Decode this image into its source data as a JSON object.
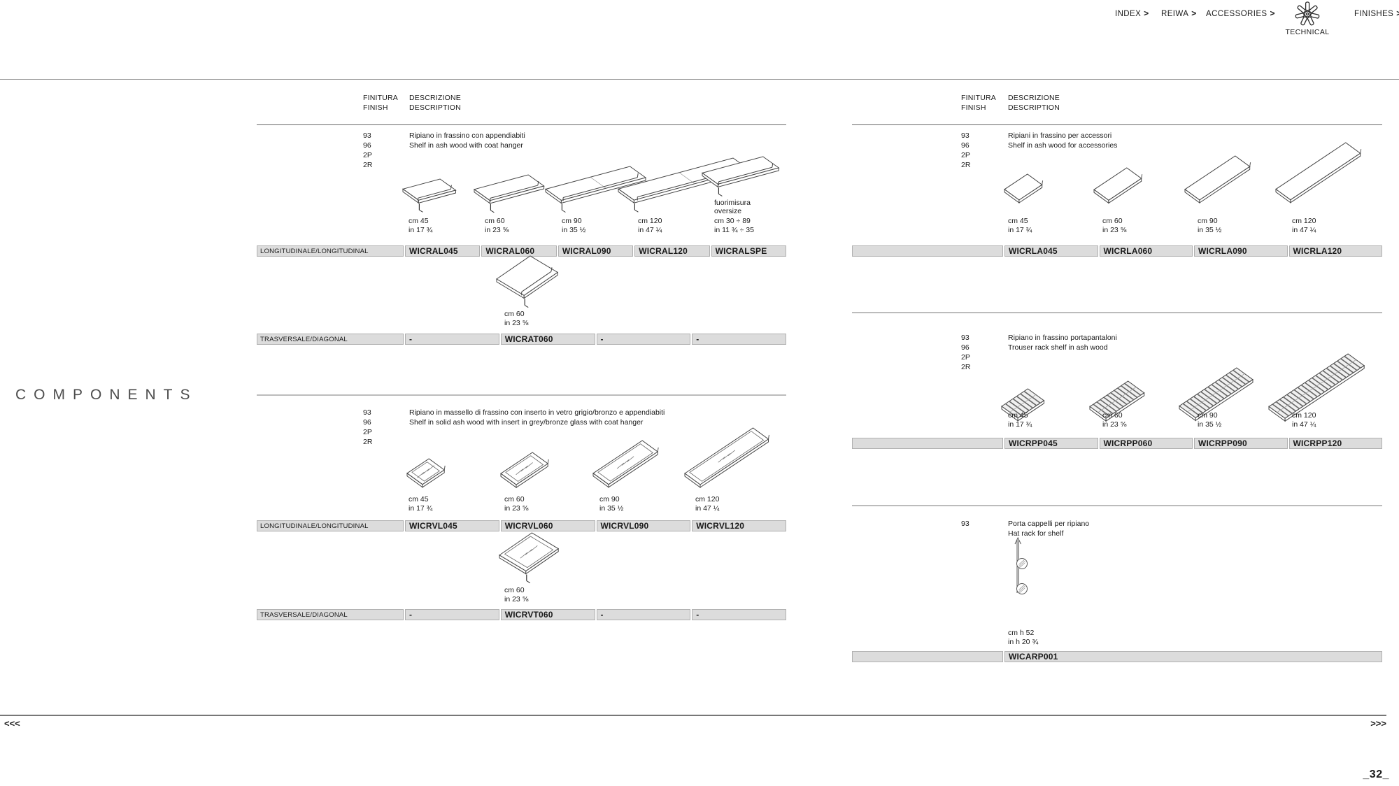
{
  "header": {
    "arrow": ">",
    "nav": [
      {
        "label": "INDEX"
      },
      {
        "label": "REIWA"
      },
      {
        "label": "ACCESSORIES"
      },
      {
        "label": "FINISHES"
      }
    ],
    "logo_caption": "TECHNICAL"
  },
  "components_title": "COMPONENTS",
  "table_header": {
    "finitura": "FINITURA",
    "finish": "FINISH",
    "descrizione": "DESCRIZIONE",
    "description": "DESCRIPTION"
  },
  "left": {
    "s1": {
      "finishes": [
        "93",
        "96",
        "2P",
        "2R"
      ],
      "desc_it": "Ripiano in frassino con appendiabiti",
      "desc_en": "Shelf in ash wood with coat hanger",
      "dims": [
        {
          "cm": "cm 45",
          "in": "in 17 ¾"
        },
        {
          "cm": "cm 60",
          "in": "in 23 ⅝"
        },
        {
          "cm": "cm 90",
          "in": "in 35 ½"
        },
        {
          "cm": "cm 120",
          "in": "in 47 ¼"
        },
        {
          "cm": "cm 30 ÷ 89",
          "in": "in 11 ¾ ÷ 35",
          "note1": "fuorimisura",
          "note2": "oversize"
        }
      ],
      "row_label": "LONGITUDINALE/LONGITUDINAL",
      "codes": [
        "WICRAL045",
        "WICRAL060",
        "WICRAL090",
        "WICRAL120",
        "WICRALSPE"
      ]
    },
    "s2": {
      "dim": {
        "cm": "cm 60",
        "in": "in 23 ⅝"
      },
      "row_label": "TRASVERSALE/DIAGONAL",
      "codes": [
        "-",
        "WICRAT060",
        "-",
        "-"
      ]
    },
    "s3": {
      "finishes": [
        "93",
        "96",
        "2P",
        "2R"
      ],
      "desc_it": "Ripiano in massello di frassino con inserto in vetro grigio/bronzo e appendiabiti",
      "desc_en": "Shelf in solid ash wood with insert in grey/bronze glass with coat hanger",
      "dims": [
        {
          "cm": "cm 45",
          "in": "in 17 ¾"
        },
        {
          "cm": "cm 60",
          "in": "in 23 ⅝"
        },
        {
          "cm": "cm 90",
          "in": "in 35 ½"
        },
        {
          "cm": "cm 120",
          "in": "in 47 ¼"
        }
      ],
      "row_label": "LONGITUDINALE/LONGITUDINAL",
      "codes": [
        "WICRVL045",
        "WICRVL060",
        "WICRVL090",
        "WICRVL120"
      ]
    },
    "s4": {
      "dim": {
        "cm": "cm 60",
        "in": "in 23 ⅝"
      },
      "row_label": "TRASVERSALE/DIAGONAL",
      "codes": [
        "-",
        "WICRVT060",
        "-",
        "-"
      ]
    }
  },
  "right": {
    "r1": {
      "finishes": [
        "93",
        "96",
        "2P",
        "2R"
      ],
      "desc_it": "Ripiani in frassino per accessori",
      "desc_en": "Shelf in ash wood for accessories",
      "dims": [
        {
          "cm": "cm 45",
          "in": "in 17 ¾"
        },
        {
          "cm": "cm 60",
          "in": "in 23 ⅝"
        },
        {
          "cm": "cm 90",
          "in": "in 35 ½"
        },
        {
          "cm": "cm 120",
          "in": "in 47 ¼"
        }
      ],
      "row_label": "",
      "codes": [
        "WICRLA045",
        "WICRLA060",
        "WICRLA090",
        "WICRLA120"
      ]
    },
    "r2": {
      "finishes": [
        "93",
        "96",
        "2P",
        "2R"
      ],
      "desc_it": "Ripiano in frassino portapantaloni",
      "desc_en": "Trouser rack shelf in ash wood",
      "dims": [
        {
          "cm": "cm 45",
          "in": "in 17 ¾"
        },
        {
          "cm": "cm 60",
          "in": "in 23 ⅝"
        },
        {
          "cm": "cm 90",
          "in": "in 35 ½"
        },
        {
          "cm": "cm 120",
          "in": "in 47 ¼"
        }
      ],
      "row_label": "",
      "codes": [
        "WICRPP045",
        "WICRPP060",
        "WICRPP090",
        "WICRPP120"
      ]
    },
    "r3": {
      "finishes": [
        "93"
      ],
      "desc_it": "Porta cappelli per ripiano",
      "desc_en": "Hat rack for shelf",
      "dim": {
        "cm": "cm h 52",
        "in": "in h 20 ¾"
      },
      "row_label": "",
      "codes": [
        "WICARP001"
      ]
    }
  },
  "footer": {
    "prev": "<<<",
    "next": ">>>",
    "page": "_32_"
  }
}
